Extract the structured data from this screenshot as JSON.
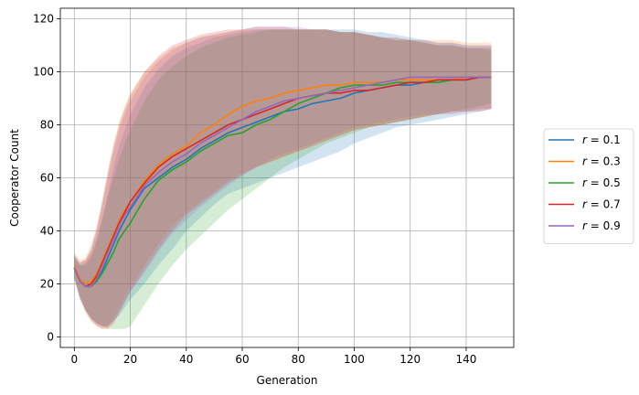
{
  "chart_data": {
    "type": "line",
    "title": "",
    "xlabel": "Generation",
    "ylabel": "Cooperator Count",
    "xlim": [
      -5,
      157
    ],
    "ylim": [
      -4,
      124
    ],
    "xticks": [
      0,
      20,
      40,
      60,
      80,
      100,
      120,
      140
    ],
    "yticks": [
      0,
      20,
      40,
      60,
      80,
      100,
      120
    ],
    "grid": true,
    "legend_position": "outside-right",
    "x": [
      0,
      2,
      4,
      6,
      8,
      10,
      12,
      14,
      16,
      18,
      20,
      25,
      30,
      35,
      40,
      45,
      50,
      55,
      60,
      65,
      70,
      75,
      80,
      85,
      90,
      95,
      100,
      105,
      110,
      115,
      120,
      125,
      130,
      135,
      140,
      145,
      149
    ],
    "series": [
      {
        "name": "r = 0.1",
        "label_r": "0.1",
        "color": "#1f77b4",
        "values": [
          26,
          21,
          19,
          19,
          21,
          25,
          30,
          35,
          40,
          44,
          48,
          56,
          60,
          64,
          67,
          71,
          74,
          77,
          79,
          81,
          83,
          85,
          86,
          88,
          89,
          90,
          92,
          93,
          94,
          95,
          95,
          96,
          96,
          97,
          97,
          98,
          98
        ],
        "lower": [
          22,
          15,
          10,
          7,
          5,
          4,
          4,
          6,
          8,
          11,
          14,
          20,
          27,
          33,
          40,
          45,
          50,
          54,
          56,
          58,
          60,
          62,
          64,
          66,
          68,
          70,
          73,
          75,
          77,
          79,
          80,
          81,
          82,
          83,
          84,
          85,
          86
        ],
        "upper": [
          30,
          27,
          27,
          30,
          36,
          44,
          54,
          64,
          72,
          78,
          84,
          94,
          101,
          106,
          109,
          111,
          113,
          114,
          115,
          116,
          116,
          116,
          116,
          116,
          116,
          116,
          116,
          115,
          115,
          114,
          113,
          112,
          111,
          111,
          110,
          110,
          110
        ]
      },
      {
        "name": "r = 0.3",
        "label_r": "0.3",
        "color": "#ff7f0e",
        "values": [
          27,
          22,
          20,
          21,
          24,
          29,
          34,
          39,
          44,
          48,
          51,
          59,
          65,
          69,
          72,
          77,
          80,
          84,
          87,
          89,
          90,
          92,
          93,
          94,
          95,
          95,
          96,
          96,
          96,
          97,
          97,
          97,
          97,
          97,
          98,
          98,
          98
        ],
        "lower": [
          23,
          15,
          10,
          6,
          4,
          3,
          4,
          7,
          11,
          15,
          19,
          27,
          35,
          42,
          47,
          51,
          55,
          59,
          62,
          64,
          66,
          68,
          70,
          72,
          74,
          76,
          78,
          79,
          80,
          81,
          82,
          83,
          84,
          85,
          85,
          86,
          86
        ],
        "upper": [
          32,
          29,
          30,
          35,
          42,
          52,
          63,
          73,
          81,
          87,
          92,
          100,
          105,
          109,
          111,
          113,
          114,
          115,
          116,
          116,
          116,
          116,
          116,
          116,
          116,
          115,
          115,
          114,
          113,
          113,
          112,
          112,
          112,
          112,
          111,
          111,
          111
        ]
      },
      {
        "name": "r = 0.5",
        "label_r": "0.5",
        "color": "#2ca02c",
        "values": [
          26,
          21,
          19,
          19,
          21,
          24,
          28,
          32,
          37,
          40,
          43,
          52,
          59,
          63,
          66,
          70,
          73,
          76,
          77,
          80,
          82,
          85,
          88,
          90,
          92,
          94,
          95,
          95,
          95,
          96,
          96,
          96,
          96,
          97,
          97,
          98,
          98
        ],
        "lower": [
          22,
          15,
          10,
          7,
          5,
          4,
          3,
          3,
          3,
          3,
          4,
          12,
          20,
          27,
          33,
          38,
          43,
          48,
          52,
          56,
          60,
          64,
          67,
          70,
          73,
          75,
          77,
          79,
          80,
          81,
          82,
          83,
          84,
          85,
          86,
          87,
          88
        ],
        "upper": [
          30,
          27,
          28,
          31,
          37,
          45,
          53,
          60,
          67,
          73,
          78,
          89,
          97,
          102,
          106,
          109,
          111,
          113,
          114,
          115,
          116,
          116,
          116,
          116,
          116,
          115,
          115,
          114,
          113,
          112,
          112,
          111,
          110,
          110,
          109,
          109,
          108
        ]
      },
      {
        "name": "r = 0.7",
        "label_r": "0.7",
        "color": "#d62728",
        "values": [
          26,
          21,
          19,
          20,
          23,
          28,
          33,
          38,
          43,
          47,
          51,
          58,
          64,
          68,
          71,
          74,
          77,
          80,
          82,
          84,
          86,
          88,
          90,
          91,
          92,
          92,
          93,
          93,
          94,
          95,
          96,
          96,
          97,
          97,
          97,
          98,
          98
        ],
        "lower": [
          22,
          14,
          9,
          6,
          4,
          3,
          3,
          5,
          9,
          13,
          17,
          25,
          33,
          40,
          46,
          50,
          54,
          58,
          61,
          64,
          66,
          68,
          70,
          72,
          74,
          76,
          78,
          79,
          80,
          81,
          82,
          83,
          84,
          84,
          85,
          85,
          86
        ],
        "upper": [
          31,
          28,
          29,
          33,
          41,
          51,
          62,
          72,
          80,
          86,
          91,
          100,
          106,
          110,
          112,
          114,
          115,
          116,
          116,
          117,
          117,
          117,
          116,
          116,
          116,
          115,
          115,
          114,
          113,
          112,
          112,
          111,
          110,
          110,
          109,
          109,
          109
        ]
      },
      {
        "name": "r = 0.9",
        "label_r": "0.9",
        "color": "#9467bd",
        "values": [
          26,
          21,
          19,
          19,
          22,
          27,
          32,
          37,
          42,
          46,
          49,
          57,
          62,
          66,
          69,
          73,
          76,
          79,
          82,
          85,
          87,
          89,
          90,
          91,
          92,
          93,
          94,
          95,
          96,
          97,
          98,
          98,
          98,
          98,
          98,
          98,
          98
        ],
        "lower": [
          22,
          15,
          10,
          7,
          5,
          4,
          4,
          6,
          9,
          13,
          17,
          24,
          32,
          39,
          44,
          49,
          53,
          57,
          61,
          64,
          67,
          69,
          71,
          73,
          75,
          77,
          79,
          80,
          81,
          82,
          83,
          84,
          84,
          85,
          85,
          86,
          86
        ],
        "upper": [
          31,
          28,
          29,
          33,
          40,
          50,
          60,
          70,
          78,
          84,
          89,
          98,
          104,
          108,
          111,
          113,
          114,
          115,
          116,
          117,
          117,
          117,
          117,
          116,
          116,
          115,
          115,
          114,
          113,
          113,
          112,
          112,
          111,
          111,
          110,
          110,
          110
        ]
      }
    ]
  }
}
